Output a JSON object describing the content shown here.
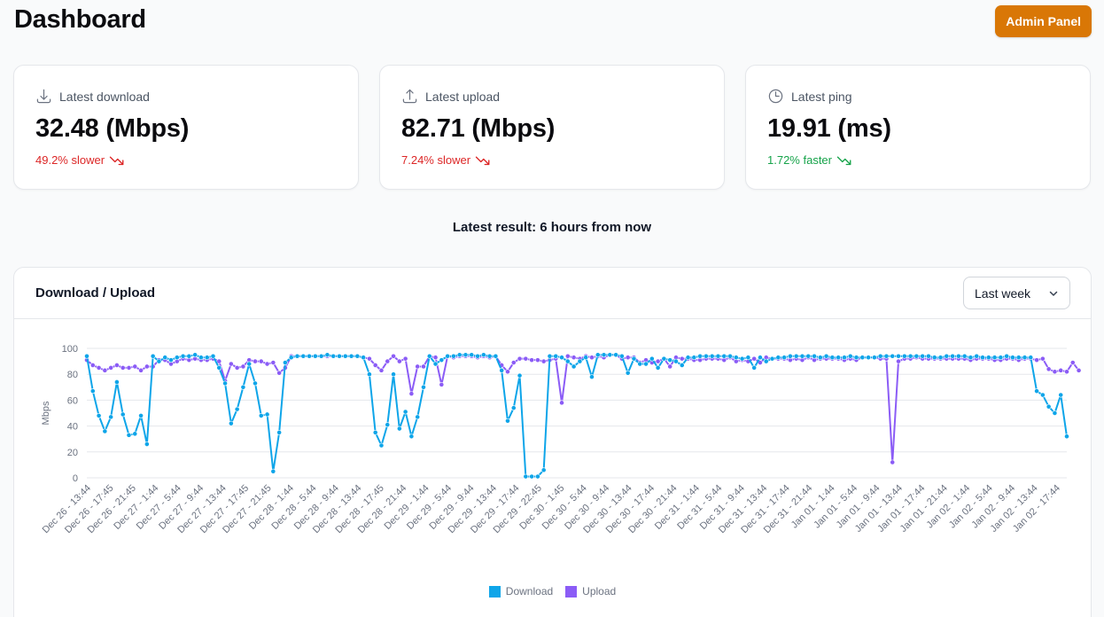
{
  "header": {
    "title": "Dashboard",
    "admin_label": "Admin Panel"
  },
  "stats": [
    {
      "label": "Latest download",
      "icon": "download-icon",
      "value": "32.48 (Mbps)",
      "change": "49.2% slower",
      "status": "slower"
    },
    {
      "label": "Latest upload",
      "icon": "upload-icon",
      "value": "82.71 (Mbps)",
      "change": "7.24% slower",
      "status": "slower"
    },
    {
      "label": "Latest ping",
      "icon": "clock-icon",
      "value": "19.91 (ms)",
      "change": "1.72% faster",
      "status": "faster"
    }
  ],
  "latest_result": "Latest result: 6 hours from now",
  "chart_card": {
    "title": "Download / Upload",
    "range_select": "Last week"
  },
  "colors": {
    "accent": "#d97706",
    "download": "#0ea5e9",
    "upload": "#8b5cf6",
    "slower": "#dc2626",
    "faster": "#16a34a"
  },
  "chart_data": {
    "type": "line",
    "ylabel": "Mbps",
    "xlabel": "",
    "ylim": [
      0,
      100
    ],
    "yticks": [
      0,
      20,
      40,
      60,
      80,
      100
    ],
    "grid": true,
    "legend_position": "bottom",
    "tick_labels": [
      "Dec 26 - 13:44",
      "Dec 26 - 17:45",
      "Dec 26 - 21:45",
      "Dec 27 - 1:44",
      "Dec 27 - 5:44",
      "Dec 27 - 9:44",
      "Dec 27 - 13:44",
      "Dec 27 - 17:45",
      "Dec 27 - 21:45",
      "Dec 28 - 1:44",
      "Dec 28 - 5:44",
      "Dec 28 - 9:44",
      "Dec 28 - 13:44",
      "Dec 28 - 17:45",
      "Dec 28 - 21:44",
      "Dec 29 - 1:44",
      "Dec 29 - 5:44",
      "Dec 29 - 9:44",
      "Dec 29 - 13:44",
      "Dec 29 - 17:44",
      "Dec 29 - 22:45",
      "Dec 30 - 1:45",
      "Dec 30 - 5:44",
      "Dec 30 - 9:44",
      "Dec 30 - 13:44",
      "Dec 30 - 17:44",
      "Dec 30 - 21:44",
      "Dec 31 - 1:44",
      "Dec 31 - 5:44",
      "Dec 31 - 9:44",
      "Dec 31 - 13:44",
      "Dec 31 - 17:44",
      "Dec 31 - 21:44",
      "Jan 01 - 1:44",
      "Jan 01 - 5:44",
      "Jan 01 - 9:44",
      "Jan 01 - 13:44",
      "Jan 01 - 17:44",
      "Jan 01 - 21:44",
      "Jan 02 - 1:44",
      "Jan 02 - 5:44",
      "Jan 02 - 9:44",
      "Jan 02 - 13:44",
      "Jan 02 - 17:44"
    ],
    "series": [
      {
        "name": "Download",
        "values": [
          94,
          67,
          48,
          36,
          47,
          74,
          49,
          33,
          34,
          48,
          26,
          94,
          90,
          93,
          91,
          93,
          94,
          94,
          95,
          93,
          93,
          94,
          85,
          73,
          42,
          53,
          70,
          88,
          73,
          48,
          49,
          5,
          35,
          89,
          93,
          94,
          94,
          94,
          94,
          94,
          95,
          94,
          94,
          94,
          94,
          94,
          93,
          80,
          35,
          25,
          41,
          80,
          38,
          51,
          32,
          47,
          70,
          94,
          88,
          91,
          94,
          94,
          95,
          95,
          95,
          94,
          95,
          94,
          94,
          83,
          44,
          54,
          79,
          1,
          1,
          1,
          6,
          94,
          94,
          93,
          90,
          86,
          90,
          93,
          78,
          95,
          95,
          95,
          95,
          94,
          81,
          92,
          88,
          88,
          92,
          85,
          92,
          91,
          90,
          87,
          93,
          93,
          94,
          94,
          94,
          94,
          94,
          94,
          93,
          92,
          93,
          85,
          93,
          90,
          92,
          93,
          93,
          94,
          94,
          94,
          94,
          94,
          93,
          94,
          93,
          93,
          93,
          94,
          93,
          93,
          93,
          93,
          94,
          94,
          94,
          94,
          94,
          94,
          94,
          94,
          94,
          93,
          93,
          94,
          94,
          94,
          94,
          93,
          94,
          93,
          93,
          93,
          93,
          94,
          93,
          93,
          93,
          93,
          67,
          64,
          55,
          50,
          64,
          32
        ]
      },
      {
        "name": "Upload",
        "values": [
          91,
          87,
          85,
          83,
          85,
          87,
          85,
          85,
          86,
          83,
          86,
          86,
          91,
          91,
          88,
          90,
          92,
          91,
          92,
          91,
          91,
          92,
          90,
          75,
          88,
          85,
          86,
          91,
          90,
          90,
          88,
          89,
          81,
          85,
          94,
          94,
          94,
          94,
          94,
          94,
          94,
          94,
          94,
          94,
          94,
          94,
          93,
          92,
          87,
          83,
          90,
          94,
          90,
          92,
          65,
          86,
          86,
          94,
          93,
          72,
          94,
          93,
          94,
          94,
          94,
          93,
          94,
          93,
          94,
          87,
          82,
          89,
          92,
          92,
          91,
          91,
          90,
          91,
          92,
          58,
          94,
          93,
          92,
          94,
          93,
          94,
          93,
          95,
          95,
          92,
          93,
          93,
          89,
          91,
          89,
          90,
          92,
          86,
          93,
          92,
          92,
          91,
          91,
          92,
          92,
          92,
          91,
          93,
          90,
          91,
          90,
          92,
          89,
          93,
          92,
          92,
          92,
          91,
          92,
          91,
          93,
          91,
          92,
          92,
          92,
          92,
          91,
          92,
          91,
          93,
          93,
          93,
          92,
          92,
          12,
          90,
          92,
          92,
          93,
          92,
          92,
          92,
          92,
          92,
          92,
          92,
          92,
          91,
          92,
          92,
          92,
          91,
          91,
          92,
          92,
          91,
          92,
          92,
          91,
          92,
          84,
          82,
          83,
          82,
          89,
          83
        ]
      }
    ]
  }
}
